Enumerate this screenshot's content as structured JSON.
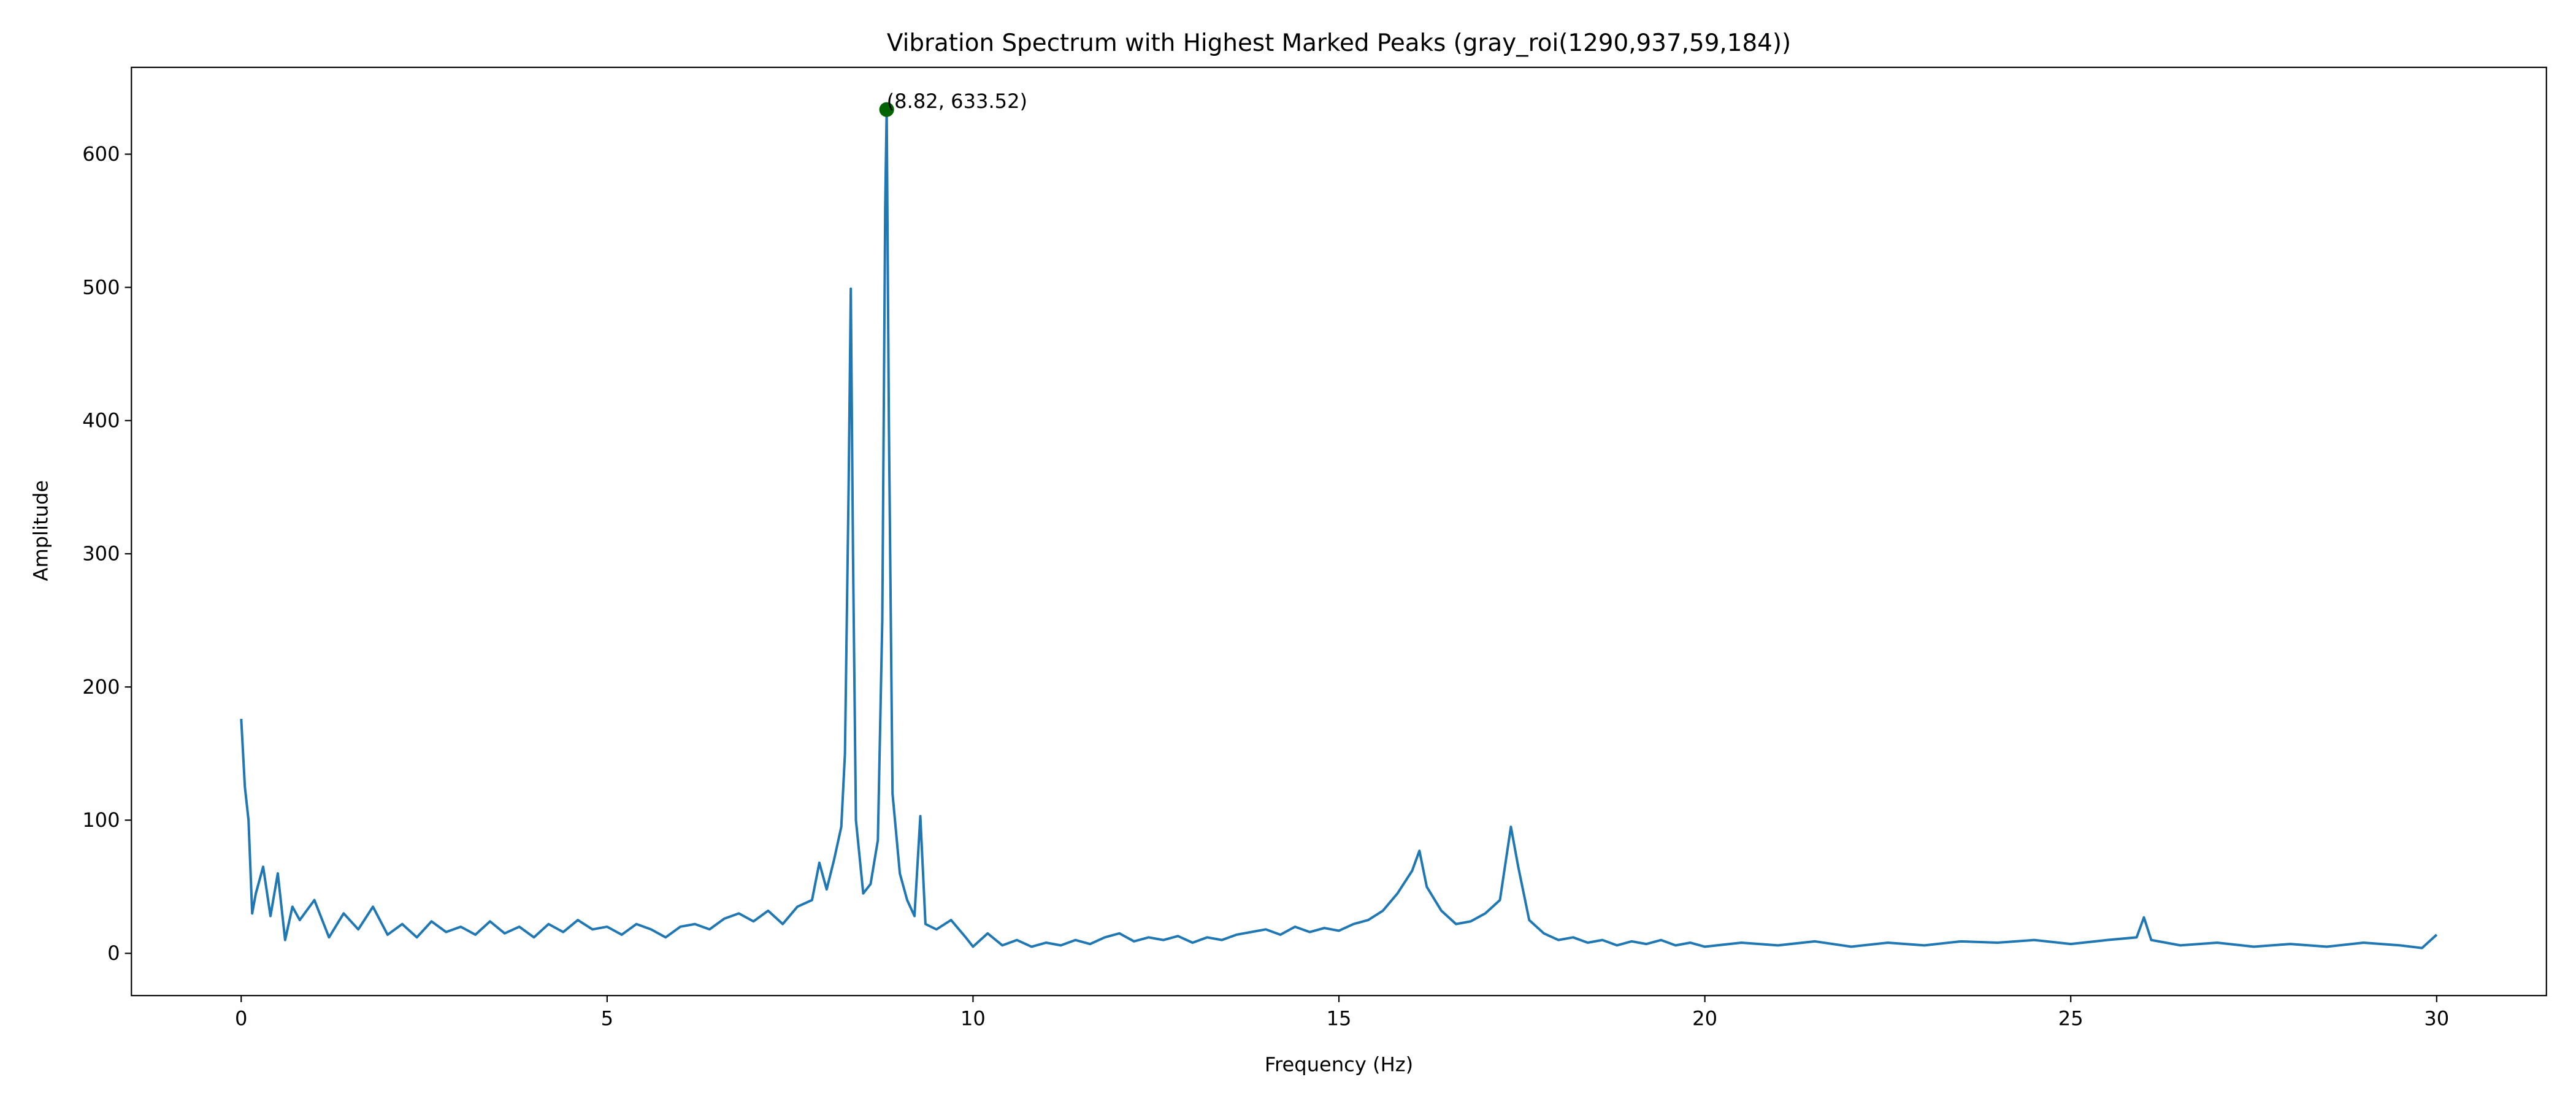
{
  "chart_data": {
    "type": "line",
    "title": "Vibration Spectrum with Highest Marked Peaks (gray_roi(1290,937,59,184))",
    "xlabel": "Frequency (Hz)",
    "ylabel": "Amplitude",
    "x": [
      0,
      0.05,
      0.1,
      0.15,
      0.2,
      0.3,
      0.4,
      0.5,
      0.6,
      0.7,
      0.8,
      1.0,
      1.2,
      1.4,
      1.6,
      1.8,
      2.0,
      2.2,
      2.4,
      2.6,
      2.8,
      3.0,
      3.2,
      3.4,
      3.6,
      3.8,
      4.0,
      4.2,
      4.4,
      4.6,
      4.8,
      5.0,
      5.2,
      5.4,
      5.6,
      5.8,
      6.0,
      6.2,
      6.4,
      6.6,
      6.8,
      7.0,
      7.2,
      7.4,
      7.6,
      7.8,
      7.9,
      8.0,
      8.1,
      8.2,
      8.25,
      8.3,
      8.33,
      8.36,
      8.4,
      8.5,
      8.6,
      8.7,
      8.76,
      8.8,
      8.82,
      8.85,
      8.9,
      9.0,
      9.1,
      9.2,
      9.28,
      9.35,
      9.5,
      9.7,
      9.9,
      10.0,
      10.2,
      10.4,
      10.6,
      10.8,
      11.0,
      11.2,
      11.4,
      11.6,
      11.8,
      12.0,
      12.2,
      12.4,
      12.6,
      12.8,
      13.0,
      13.2,
      13.4,
      13.6,
      13.8,
      14.0,
      14.2,
      14.4,
      14.6,
      14.8,
      15.0,
      15.2,
      15.4,
      15.6,
      15.8,
      16.0,
      16.1,
      16.2,
      16.4,
      16.6,
      16.8,
      17.0,
      17.2,
      17.35,
      17.45,
      17.6,
      17.8,
      18.0,
      18.2,
      18.4,
      18.6,
      18.8,
      19.0,
      19.2,
      19.4,
      19.6,
      19.8,
      20.0,
      20.5,
      21.0,
      21.5,
      22.0,
      22.5,
      23.0,
      23.5,
      24.0,
      24.5,
      25.0,
      25.5,
      25.9,
      26.0,
      26.1,
      26.5,
      27.0,
      27.5,
      28.0,
      28.5,
      29.0,
      29.5,
      29.8,
      30.0
    ],
    "series": [
      {
        "color": "#1f77b4",
        "values": [
          176,
          125,
          100,
          30,
          45,
          65,
          28,
          60,
          10,
          35,
          25,
          40,
          12,
          30,
          18,
          35,
          14,
          22,
          12,
          24,
          16,
          20,
          14,
          24,
          15,
          20,
          12,
          22,
          16,
          25,
          18,
          20,
          14,
          22,
          18,
          12,
          20,
          22,
          18,
          26,
          30,
          24,
          32,
          22,
          35,
          40,
          68,
          48,
          70,
          95,
          150,
          350,
          499,
          300,
          100,
          45,
          52,
          85,
          250,
          560,
          633.52,
          400,
          120,
          60,
          40,
          28,
          103,
          22,
          18,
          25,
          12,
          5,
          15,
          6,
          10,
          5,
          8,
          6,
          10,
          7,
          12,
          15,
          9,
          12,
          10,
          13,
          8,
          12,
          10,
          14,
          16,
          18,
          14,
          20,
          16,
          19,
          17,
          22,
          25,
          32,
          45,
          62,
          77,
          50,
          32,
          22,
          24,
          30,
          40,
          95,
          65,
          25,
          15,
          10,
          12,
          8,
          10,
          6,
          9,
          7,
          10,
          6,
          8,
          5,
          8,
          6,
          9,
          5,
          8,
          6,
          9,
          8,
          10,
          7,
          10,
          12,
          27,
          10,
          6,
          8,
          5,
          7,
          5,
          8,
          6,
          4,
          14
        ]
      }
    ],
    "peak": {
      "x": 8.82,
      "y": 633.52,
      "label": "(8.82, 633.52)",
      "color": "#006400"
    },
    "xlim": [
      -1.5,
      31.5
    ],
    "ylim": [
      -31.7,
      665.2
    ],
    "xticks": [
      0,
      5,
      10,
      15,
      20,
      25,
      30
    ],
    "yticks": [
      0,
      100,
      200,
      300,
      400,
      500,
      600
    ]
  }
}
